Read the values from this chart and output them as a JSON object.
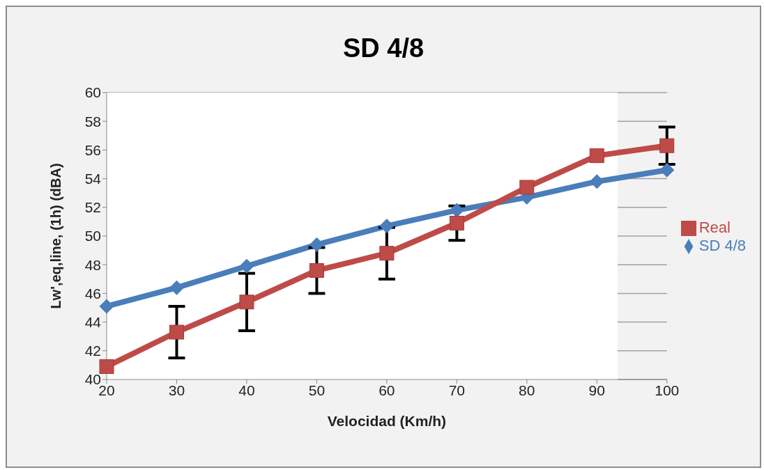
{
  "chart_data": {
    "type": "line",
    "title": "SD 4/8",
    "xlabel": "Velocidad (Km/h)",
    "ylabel": "Lw',eq,line, (1h) (dBA)",
    "categories": [
      "20",
      "30",
      "40",
      "50",
      "60",
      "70",
      "80",
      "90",
      "100"
    ],
    "series": [
      {
        "name": "SD 4/8",
        "color": "#4a7ebb",
        "marker": "diamond",
        "values": [
          45.1,
          46.4,
          47.9,
          49.4,
          50.7,
          51.8,
          52.7,
          53.8,
          54.6
        ]
      },
      {
        "name": "Real",
        "color": "#be4b48",
        "marker": "square",
        "values": [
          40.9,
          43.3,
          45.4,
          47.6,
          48.8,
          50.9,
          53.4,
          55.6,
          56.3
        ],
        "errors": [
          null,
          1.8,
          2.0,
          1.6,
          1.8,
          1.2,
          null,
          null,
          1.3
        ]
      }
    ],
    "ylim": [
      40,
      60
    ],
    "yticks": [
      40,
      42,
      44,
      46,
      48,
      50,
      52,
      54,
      56,
      58,
      60
    ],
    "grid": "y",
    "legend": "right"
  }
}
